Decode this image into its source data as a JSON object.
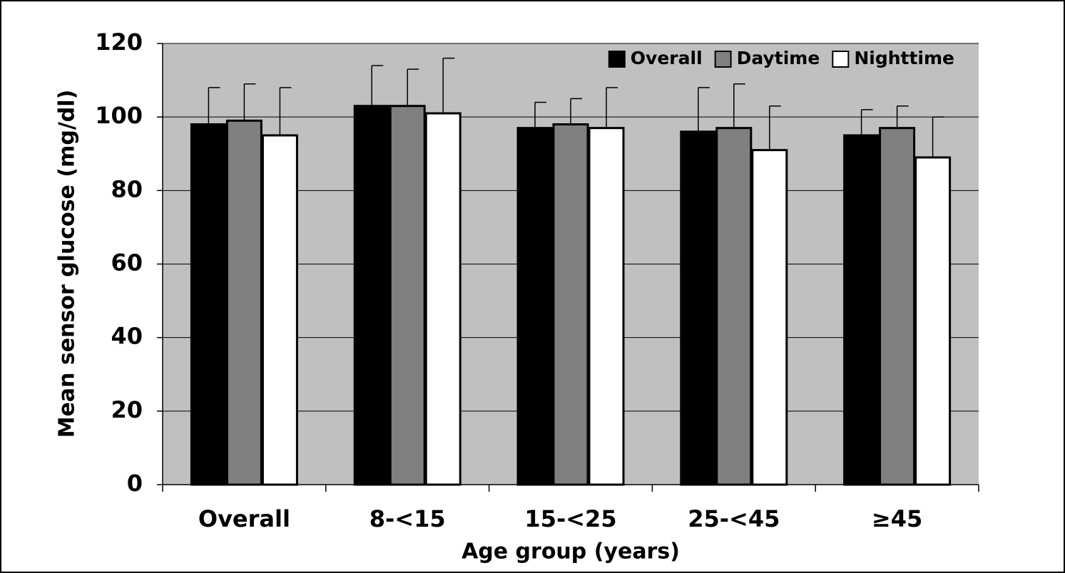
{
  "chart_data": {
    "type": "bar",
    "x_label": "Age group (years)",
    "y_label": "Mean sensor glucose (mg/dl)",
    "categories": [
      "Overall",
      "8-<15",
      "15-<25",
      "25-<45",
      "≥45"
    ],
    "series": [
      {
        "name": "Overall",
        "color": "#000000",
        "values": [
          98,
          103,
          97,
          96,
          95
        ],
        "errors": [
          10,
          11,
          7,
          12,
          7
        ]
      },
      {
        "name": "Daytime",
        "color": "#808080",
        "values": [
          99,
          103,
          98,
          97,
          97
        ],
        "errors": [
          10,
          10,
          7,
          12,
          6
        ]
      },
      {
        "name": "Nighttime",
        "color": "#ffffff",
        "values": [
          95,
          101,
          97,
          91,
          89
        ],
        "errors": [
          13,
          15,
          11,
          12,
          11
        ]
      }
    ],
    "ylim": [
      0,
      120
    ],
    "yticks": [
      0,
      20,
      40,
      60,
      80,
      100,
      120
    ],
    "grid": true,
    "legend": "top-right"
  }
}
